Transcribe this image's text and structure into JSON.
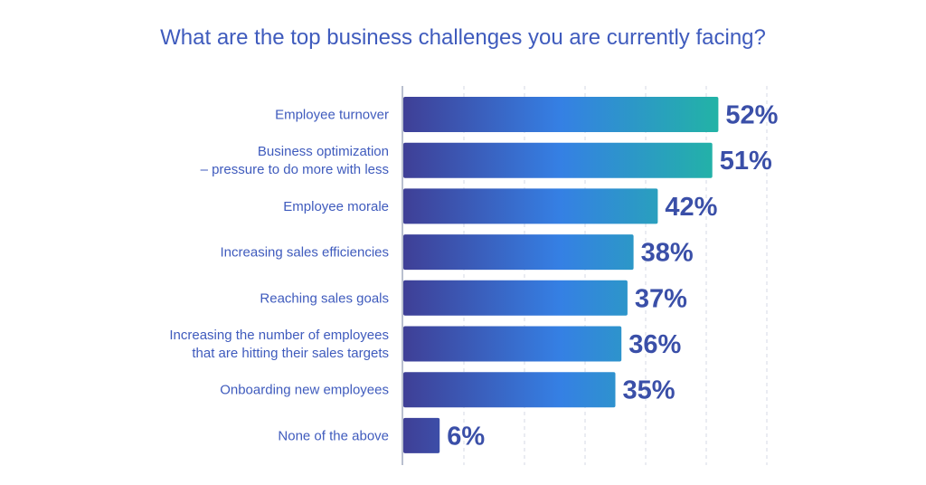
{
  "title": "What are the top business challenges you are currently facing?",
  "chart_data": {
    "type": "bar",
    "orientation": "horizontal",
    "title": "What are the top business challenges you are currently facing?",
    "xlabel": "",
    "ylabel": "",
    "unit": "%",
    "xlim": [
      0,
      60
    ],
    "grid": true,
    "categories": [
      [
        "Employee turnover"
      ],
      [
        "Business optimization",
        "– pressure to do more with less"
      ],
      [
        "Employee morale"
      ],
      [
        "Increasing sales efficiencies"
      ],
      [
        "Reaching sales goals"
      ],
      [
        "Increasing the number of employees",
        "that are hitting their sales targets"
      ],
      [
        "Onboarding new employees"
      ],
      [
        "None of the above"
      ]
    ],
    "values": [
      52,
      51,
      42,
      38,
      37,
      36,
      35,
      6
    ]
  },
  "colors": {
    "title": "#3f5bbd",
    "label": "#3f5bbd",
    "value": "#3a4fa8",
    "bar_start": "#3f3f96",
    "bar_mid": "#3580e4",
    "bar_end": "#22b3a6",
    "grid": "#d5d9e4",
    "axis": "#b9bfcf"
  }
}
